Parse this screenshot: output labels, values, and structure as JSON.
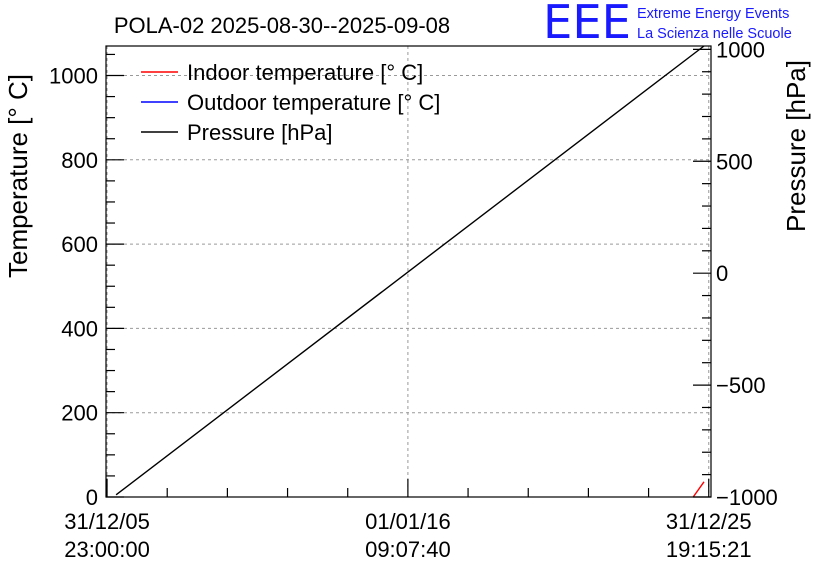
{
  "chart_data": {
    "type": "line",
    "title": "POLA-02 2025-08-30--2025-09-08",
    "ylabel": "Temperature [° C]",
    "y2label": "Pressure [hPa]",
    "ylim": [
      0,
      1070
    ],
    "y2lim": [
      -1000,
      1015
    ],
    "yticks": [
      0,
      200,
      400,
      600,
      800,
      1000
    ],
    "y2ticks": [
      -1000,
      -500,
      0,
      500,
      1000
    ],
    "y2tick_labels": [
      "−1000",
      "−500",
      "0",
      "500",
      "1000"
    ],
    "x_time_seconds": [
      0,
      315569860,
      631139521
    ],
    "xlim_seconds": [
      -1100000,
      633500000
    ],
    "xticks": [
      {
        "value": 0,
        "date": "31/12/05",
        "time": "23:00:00"
      },
      {
        "value": 315569860,
        "date": "01/01/16",
        "time": "09:07:40"
      },
      {
        "value": 631139521,
        "date": "31/12/25",
        "time": "19:15:21"
      }
    ],
    "grid": true,
    "legend_position": "top-left",
    "series": [
      {
        "name": "Indoor temperature [° C]",
        "color": "#ff0000",
        "axis": "left",
        "x": [
          614800000,
          626200000
        ],
        "y": [
          0,
          36
        ]
      },
      {
        "name": "Outdoor temperature [° C]",
        "color": "#0000ff",
        "axis": "left",
        "x": [],
        "y": []
      },
      {
        "name": "Pressure [hPa]",
        "color": "#000000",
        "axis": "right",
        "x": [
          9500000,
          626200000
        ],
        "y": [
          -990,
          1015
        ]
      }
    ]
  },
  "logo": {
    "mark": "EEE",
    "line1": "Extreme Energy Events",
    "line2": "La Scienza nelle Scuole",
    "color": "#1a1aff"
  }
}
